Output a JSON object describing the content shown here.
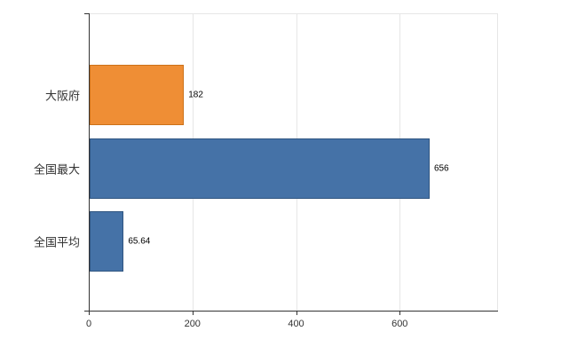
{
  "chart_data": {
    "type": "bar",
    "orientation": "horizontal",
    "title": "",
    "xlabel": "",
    "ylabel": "",
    "categories": [
      "大阪府",
      "全国最大",
      "全国平均"
    ],
    "values": [
      182,
      656,
      65.64
    ],
    "value_labels": [
      "182",
      "656",
      "65.64"
    ],
    "series": [
      {
        "name": "",
        "values": [
          182,
          656,
          65.64
        ]
      }
    ],
    "bar_colors": [
      "#ef8e35",
      "#4572a7",
      "#4572a7"
    ],
    "bar_border_colors": [
      "#cc7119",
      "#2f5580",
      "#2f5580"
    ],
    "x_ticks": [
      0,
      200,
      400,
      600
    ],
    "x_tick_labels": [
      "0",
      "200",
      "400",
      "600"
    ],
    "xlim": [
      0,
      788
    ],
    "grid": true,
    "legend": "none"
  },
  "colors": {
    "background": "#ffffff",
    "gridline": "#e6e6e6",
    "axis": "#333333",
    "category_text": "#333333",
    "value_text": "#000000",
    "orange": "#ef8e35",
    "blue": "#4572a7"
  }
}
